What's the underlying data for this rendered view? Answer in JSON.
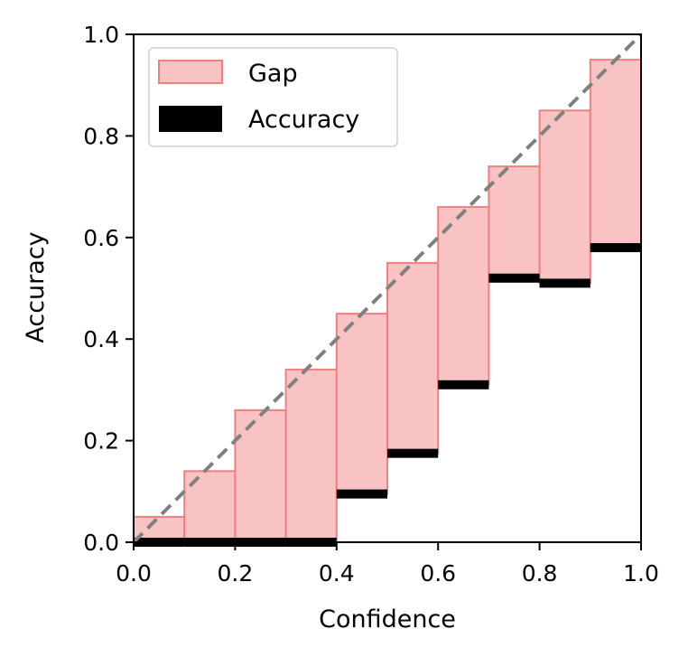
{
  "chart_data": {
    "type": "bar",
    "title": "",
    "xlabel": "Confidence",
    "ylabel": "Accuracy",
    "xlim": [
      0.0,
      1.0
    ],
    "ylim": [
      0.0,
      1.0
    ],
    "xticks": [
      "0.0",
      "0.2",
      "0.4",
      "0.6",
      "0.8",
      "1.0"
    ],
    "yticks": [
      "0.0",
      "0.2",
      "0.4",
      "0.6",
      "0.8",
      "1.0"
    ],
    "bins": [
      {
        "x0": 0.0,
        "x1": 0.1
      },
      {
        "x0": 0.1,
        "x1": 0.2
      },
      {
        "x0": 0.2,
        "x1": 0.3
      },
      {
        "x0": 0.3,
        "x1": 0.4
      },
      {
        "x0": 0.4,
        "x1": 0.5
      },
      {
        "x0": 0.5,
        "x1": 0.6
      },
      {
        "x0": 0.6,
        "x1": 0.7
      },
      {
        "x0": 0.7,
        "x1": 0.8
      },
      {
        "x0": 0.8,
        "x1": 0.9
      },
      {
        "x0": 0.9,
        "x1": 1.0
      }
    ],
    "series": [
      {
        "name": "Gap",
        "values": [
          0.05,
          0.14,
          0.26,
          0.34,
          0.45,
          0.55,
          0.66,
          0.74,
          0.85,
          0.95
        ]
      },
      {
        "name": "Accuracy",
        "values": [
          0.0,
          0.0,
          0.0,
          0.0,
          0.095,
          0.175,
          0.31,
          0.52,
          0.51,
          0.58
        ]
      }
    ],
    "reference_line": {
      "style": "dashed",
      "from": [
        0.0,
        0.0
      ],
      "to": [
        1.0,
        1.0
      ]
    },
    "legend_position": "top-left",
    "grid": false,
    "colors": {
      "gap_fill": "#f9c3c3",
      "gap_edge": "#f08080",
      "accuracy": "#000000",
      "diagonal": "#808080"
    }
  }
}
